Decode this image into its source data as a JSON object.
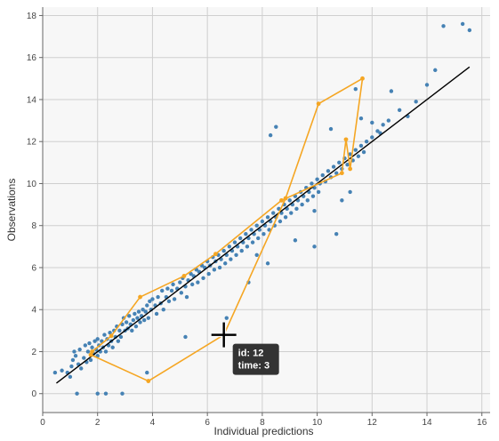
{
  "chart_data": {
    "type": "scatter",
    "xlabel": "Individual predictions",
    "ylabel": "Observations",
    "xlim": [
      0,
      16.3
    ],
    "ylim": [
      -0.9,
      18.4
    ],
    "x_ticks": [
      "0",
      "2",
      "4",
      "6",
      "8",
      "10",
      "12",
      "14",
      "16"
    ],
    "y_ticks": [
      "0",
      "2",
      "4",
      "6",
      "8",
      "10",
      "12",
      "14",
      "16",
      "18"
    ],
    "grid": true,
    "colors": {
      "points": "#4682b4",
      "highlight": "#f5a623",
      "reference_line": "#000000",
      "plot_bg": "#f7f7f7",
      "grid": "#cfcfcf"
    },
    "reference_line": {
      "x": [
        0.5,
        15.55
      ],
      "y": [
        0.5,
        15.55
      ]
    },
    "points": [
      [
        0.45,
        1.0
      ],
      [
        0.7,
        1.1
      ],
      [
        0.9,
        1.0
      ],
      [
        1.0,
        0.8
      ],
      [
        1.05,
        1.3
      ],
      [
        1.1,
        1.6
      ],
      [
        1.15,
        2.0
      ],
      [
        1.2,
        1.8
      ],
      [
        1.25,
        0.0
      ],
      [
        1.3,
        1.4
      ],
      [
        1.35,
        2.1
      ],
      [
        1.4,
        1.2
      ],
      [
        1.5,
        1.7
      ],
      [
        1.55,
        2.3
      ],
      [
        1.6,
        1.5
      ],
      [
        1.65,
        2.0
      ],
      [
        1.7,
        2.4
      ],
      [
        1.75,
        1.6
      ],
      [
        1.8,
        2.2
      ],
      [
        1.85,
        1.9
      ],
      [
        1.9,
        2.5
      ],
      [
        1.95,
        2.1
      ],
      [
        2.0,
        1.8
      ],
      [
        2.0,
        2.6
      ],
      [
        2.05,
        2.3
      ],
      [
        2.1,
        2.0
      ],
      [
        2.15,
        2.5
      ],
      [
        2.2,
        2.2
      ],
      [
        2.25,
        2.8
      ],
      [
        2.3,
        2.0
      ],
      [
        2.35,
        2.6
      ],
      [
        2.4,
        2.3
      ],
      [
        2.45,
        2.9
      ],
      [
        2.5,
        2.5
      ],
      [
        2.55,
        2.2
      ],
      [
        2.6,
        3.0
      ],
      [
        2.65,
        2.7
      ],
      [
        2.7,
        3.2
      ],
      [
        2.75,
        2.5
      ],
      [
        2.8,
        3.0
      ],
      [
        2.85,
        2.7
      ],
      [
        2.9,
        3.3
      ],
      [
        2.95,
        3.6
      ],
      [
        3.0,
        3.0
      ],
      [
        3.05,
        3.4
      ],
      [
        3.1,
        3.1
      ],
      [
        3.15,
        3.7
      ],
      [
        3.2,
        3.3
      ],
      [
        3.25,
        3.0
      ],
      [
        3.3,
        3.5
      ],
      [
        3.35,
        3.8
      ],
      [
        3.4,
        3.2
      ],
      [
        3.45,
        3.6
      ],
      [
        3.5,
        3.9
      ],
      [
        3.55,
        3.4
      ],
      [
        3.6,
        3.7
      ],
      [
        3.65,
        4.0
      ],
      [
        3.7,
        3.5
      ],
      [
        3.75,
        3.9
      ],
      [
        3.8,
        4.2
      ],
      [
        3.85,
        3.6
      ],
      [
        3.9,
        4.4
      ],
      [
        3.95,
        4.0
      ],
      [
        4.0,
        4.5
      ],
      [
        4.1,
        4.2
      ],
      [
        4.15,
        3.8
      ],
      [
        4.2,
        4.6
      ],
      [
        4.3,
        4.3
      ],
      [
        4.35,
        4.9
      ],
      [
        4.4,
        4.0
      ],
      [
        4.5,
        4.6
      ],
      [
        4.55,
        5.0
      ],
      [
        4.6,
        4.4
      ],
      [
        4.7,
        4.9
      ],
      [
        4.75,
        5.2
      ],
      [
        4.8,
        4.5
      ],
      [
        4.9,
        5.0
      ],
      [
        5.0,
        5.3
      ],
      [
        5.05,
        4.8
      ],
      [
        5.1,
        5.5
      ],
      [
        5.2,
        5.1
      ],
      [
        5.25,
        4.6
      ],
      [
        5.3,
        5.4
      ],
      [
        5.4,
        5.7
      ],
      [
        5.45,
        5.2
      ],
      [
        5.5,
        5.6
      ],
      [
        5.6,
        5.9
      ],
      [
        5.65,
        5.3
      ],
      [
        5.7,
        5.8
      ],
      [
        5.8,
        6.1
      ],
      [
        5.85,
        5.5
      ],
      [
        5.9,
        6.0
      ],
      [
        6.0,
        6.3
      ],
      [
        6.05,
        5.7
      ],
      [
        6.1,
        6.1
      ],
      [
        6.2,
        6.5
      ],
      [
        6.25,
        5.9
      ],
      [
        6.3,
        6.3
      ],
      [
        6.4,
        6.6
      ],
      [
        6.45,
        6.0
      ],
      [
        6.5,
        6.4
      ],
      [
        6.6,
        6.8
      ],
      [
        6.65,
        6.2
      ],
      [
        6.7,
        6.6
      ],
      [
        6.8,
        7.0
      ],
      [
        6.85,
        6.4
      ],
      [
        6.9,
        6.8
      ],
      [
        7.0,
        7.2
      ],
      [
        7.05,
        6.6
      ],
      [
        7.1,
        7.0
      ],
      [
        7.2,
        7.4
      ],
      [
        7.25,
        6.8
      ],
      [
        7.3,
        7.2
      ],
      [
        7.4,
        7.6
      ],
      [
        7.45,
        7.0
      ],
      [
        7.5,
        7.4
      ],
      [
        7.6,
        7.8
      ],
      [
        7.65,
        7.2
      ],
      [
        7.7,
        7.6
      ],
      [
        7.8,
        8.0
      ],
      [
        7.85,
        7.4
      ],
      [
        7.9,
        7.8
      ],
      [
        8.0,
        8.2
      ],
      [
        8.05,
        7.6
      ],
      [
        8.1,
        8.0
      ],
      [
        8.2,
        8.4
      ],
      [
        8.25,
        7.8
      ],
      [
        8.3,
        8.2
      ],
      [
        8.4,
        8.6
      ],
      [
        8.45,
        8.0
      ],
      [
        8.5,
        8.4
      ],
      [
        8.6,
        8.8
      ],
      [
        8.65,
        8.2
      ],
      [
        8.7,
        8.6
      ],
      [
        8.8,
        9.0
      ],
      [
        8.85,
        8.4
      ],
      [
        8.9,
        8.8
      ],
      [
        9.0,
        9.2
      ],
      [
        9.05,
        8.6
      ],
      [
        9.1,
        9.0
      ],
      [
        9.2,
        9.4
      ],
      [
        9.25,
        8.8
      ],
      [
        9.3,
        9.2
      ],
      [
        9.4,
        9.6
      ],
      [
        9.45,
        9.0
      ],
      [
        9.5,
        9.4
      ],
      [
        9.6,
        9.8
      ],
      [
        9.65,
        9.2
      ],
      [
        9.7,
        9.6
      ],
      [
        9.8,
        10.0
      ],
      [
        9.85,
        9.4
      ],
      [
        9.9,
        9.8
      ],
      [
        10.0,
        10.2
      ],
      [
        10.05,
        9.6
      ],
      [
        10.1,
        10.0
      ],
      [
        10.2,
        10.4
      ],
      [
        10.3,
        10.1
      ],
      [
        10.4,
        10.6
      ],
      [
        10.5,
        10.3
      ],
      [
        10.6,
        10.8
      ],
      [
        10.7,
        10.5
      ],
      [
        10.8,
        11.0
      ],
      [
        10.9,
        10.7
      ],
      [
        11.0,
        11.2
      ],
      [
        11.1,
        10.9
      ],
      [
        11.2,
        11.4
      ],
      [
        11.3,
        11.1
      ],
      [
        11.4,
        11.6
      ],
      [
        11.5,
        11.3
      ],
      [
        11.6,
        11.8
      ],
      [
        11.7,
        11.5
      ],
      [
        11.8,
        12.0
      ],
      [
        12.0,
        12.2
      ],
      [
        12.2,
        12.5
      ],
      [
        12.4,
        12.8
      ],
      [
        12.6,
        13.0
      ],
      [
        2.0,
        0.0
      ],
      [
        2.3,
        0.0
      ],
      [
        2.9,
        0.0
      ],
      [
        3.8,
        1.0
      ],
      [
        5.2,
        2.7
      ],
      [
        6.6,
        2.8
      ],
      [
        6.7,
        3.6
      ],
      [
        7.5,
        5.3
      ],
      [
        7.8,
        6.6
      ],
      [
        8.2,
        6.2
      ],
      [
        8.3,
        12.3
      ],
      [
        8.5,
        12.7
      ],
      [
        9.2,
        7.3
      ],
      [
        9.9,
        7.0
      ],
      [
        9.9,
        8.7
      ],
      [
        10.5,
        12.6
      ],
      [
        10.7,
        7.6
      ],
      [
        10.9,
        9.2
      ],
      [
        11.2,
        9.6
      ],
      [
        11.4,
        14.5
      ],
      [
        11.6,
        13.1
      ],
      [
        12.0,
        12.9
      ],
      [
        12.3,
        12.4
      ],
      [
        12.7,
        14.4
      ],
      [
        13.0,
        13.5
      ],
      [
        13.3,
        13.2
      ],
      [
        13.6,
        13.9
      ],
      [
        14.0,
        14.7
      ],
      [
        14.3,
        15.4
      ],
      [
        14.6,
        17.5
      ],
      [
        15.3,
        17.6
      ],
      [
        15.55,
        17.3
      ]
    ],
    "highlight_series": {
      "x": [
        1.75,
        3.85,
        6.6,
        8.85,
        10.05,
        11.65,
        11.2,
        11.05,
        10.9,
        8.7,
        6.3,
        5.15,
        3.55,
        2.5,
        1.8
      ],
      "y": [
        1.85,
        0.6,
        2.8,
        9.3,
        13.8,
        15.0,
        10.7,
        12.1,
        10.5,
        9.2,
        6.65,
        5.6,
        4.6,
        2.75,
        2.0
      ]
    },
    "tooltip": {
      "x": 6.6,
      "y": 2.8,
      "lines": [
        "id: 12",
        "time: 3"
      ]
    }
  }
}
